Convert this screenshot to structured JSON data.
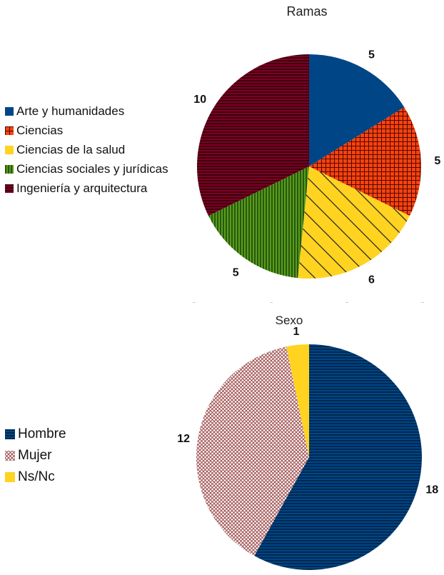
{
  "chart_data": [
    {
      "type": "pie",
      "title": "Ramas",
      "categories": [
        "Arte y humanidades",
        "Ciencias",
        "Ciencias de la salud",
        "Ciencias sociales y jurídicas",
        "Ingeniería y arquitectura"
      ],
      "values": [
        5,
        5,
        6,
        5,
        10
      ],
      "colors": [
        "#004586",
        "#ff420e",
        "#ffd320",
        "#579d1c",
        "#7e0021"
      ],
      "patterns": [
        "solid",
        "grid",
        "diagonal",
        "vertical",
        "horizontal"
      ],
      "legend_position": "left"
    },
    {
      "type": "pie",
      "title": "Sexo",
      "categories": [
        "Hombre",
        "Mujer",
        "Ns/Nc"
      ],
      "values": [
        18,
        12,
        1
      ],
      "colors": [
        "#004586",
        "#a05050",
        "#ffd320"
      ],
      "patterns": [
        "horizontal",
        "crosshatch",
        "solid"
      ],
      "legend_position": "left"
    }
  ]
}
